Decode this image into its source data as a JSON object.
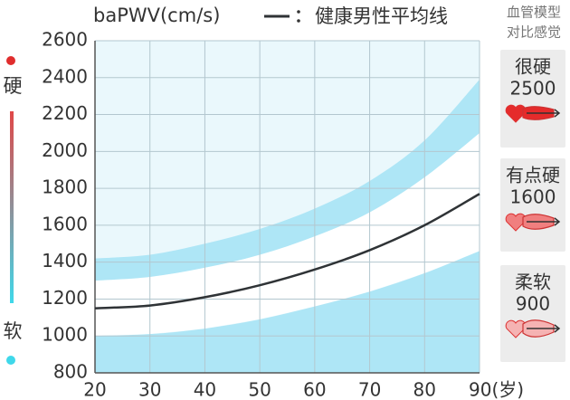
{
  "chart_data": {
    "type": "line",
    "title": "baPWV(cm/s)",
    "x": [
      20,
      30,
      40,
      50,
      60,
      70,
      80,
      90
    ],
    "series": [
      {
        "name": "健康男性平均线",
        "color": "#2f3336",
        "values": [
          1150,
          1165,
          1210,
          1275,
          1360,
          1465,
          1600,
          1770
        ]
      }
    ],
    "bands": [
      {
        "color": "#aee6f6",
        "high": [
          1420,
          1440,
          1500,
          1580,
          1690,
          1840,
          2060,
          2390
        ],
        "low": [
          1300,
          1320,
          1370,
          1440,
          1540,
          1670,
          1860,
          2100
        ]
      },
      {
        "color": "#aee6f6",
        "high": [
          1000,
          1010,
          1040,
          1090,
          1160,
          1240,
          1340,
          1460
        ]
      }
    ],
    "xlim": [
      20,
      90
    ],
    "xticks": [
      20,
      30,
      40,
      50,
      60,
      70,
      80,
      {
        "value": 90,
        "label": "90(岁)"
      }
    ],
    "ylim": [
      800,
      2600
    ],
    "yticks": [
      800,
      1000,
      1200,
      1400,
      1600,
      1800,
      2000,
      2200,
      2400,
      2600
    ],
    "grid": true
  },
  "hardness_scale": {
    "top": "硬",
    "bottom": "软"
  },
  "model_panel": {
    "title": [
      "血管模型",
      "对比感觉"
    ],
    "models": [
      {
        "label": "很硬",
        "value": 2500
      },
      {
        "label": "有点硬",
        "value": 1600
      },
      {
        "label": "柔软",
        "value": 900
      }
    ]
  }
}
